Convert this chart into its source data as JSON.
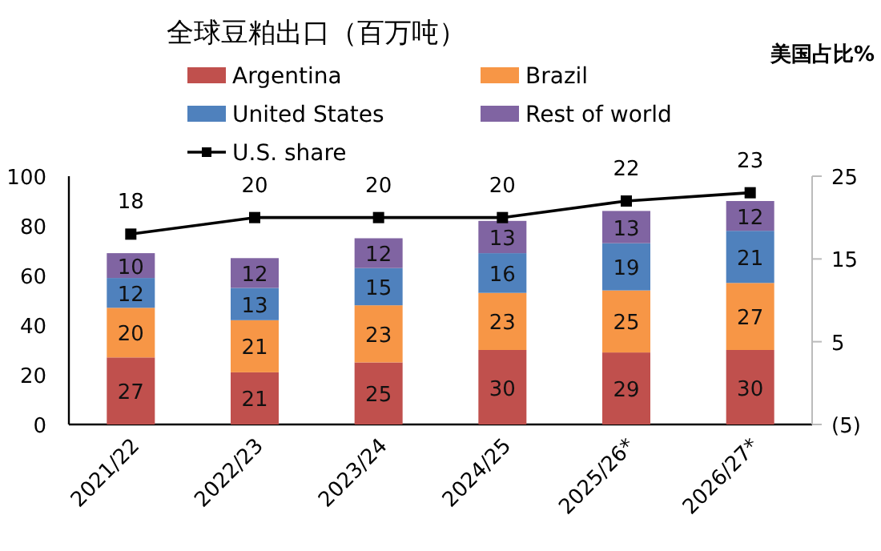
{
  "chart_data": {
    "type": "bar",
    "stacked": true,
    "title": "全球豆粕出口（百万吨）",
    "y2label": "美国占比%",
    "categories": [
      "2021/22",
      "2022/23",
      "2023/24",
      "2024/25",
      "2025/26*",
      "2026/27*"
    ],
    "series": [
      {
        "name": "Argentina",
        "color": "#c0504d",
        "values": [
          27,
          21,
          25,
          30,
          29,
          30
        ]
      },
      {
        "name": "Brazil",
        "color": "#f79646",
        "values": [
          20,
          21,
          23,
          23,
          25,
          27
        ]
      },
      {
        "name": "United States",
        "color": "#4f81bd",
        "values": [
          12,
          13,
          15,
          16,
          19,
          21
        ]
      },
      {
        "name": "Rest of world",
        "color": "#8064a2",
        "values": [
          10,
          12,
          12,
          13,
          13,
          12
        ]
      },
      {
        "name": "U.S. share",
        "type": "line",
        "axis": "y2",
        "color": "#000000",
        "values": [
          18,
          20,
          20,
          20,
          22,
          23
        ]
      }
    ],
    "ylim": [
      0,
      100
    ],
    "yticks": [
      0,
      20,
      40,
      60,
      80,
      100
    ],
    "y2lim": [
      -5,
      25
    ],
    "y2ticks": [
      {
        "value": -5,
        "label": "(5)"
      },
      5,
      15,
      25
    ],
    "data_labels": true,
    "legend": "top",
    "grid": false,
    "marker": "square",
    "line_style": "solid"
  }
}
